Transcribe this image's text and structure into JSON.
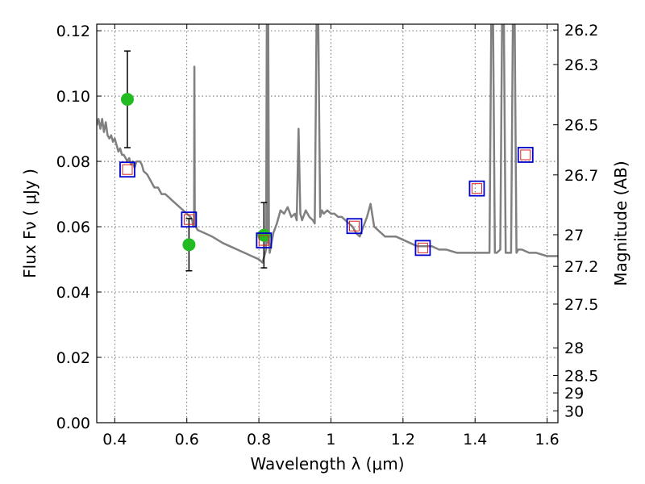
{
  "chart_data": {
    "type": "scatter",
    "title": "",
    "xlabel": "Wavelength  λ (μm)",
    "ylabel": "Flux  Fν  ( μJy )",
    "y2label": "Magnitude (AB)",
    "xlim": [
      0.35,
      1.63
    ],
    "ylim": [
      0.0,
      0.122
    ],
    "grid": true,
    "x_ticks": [
      {
        "value": 0.4,
        "label": "0.4"
      },
      {
        "value": 0.6,
        "label": "0.6"
      },
      {
        "value": 0.8,
        "label": "0.8"
      },
      {
        "value": 1.0,
        "label": "1"
      },
      {
        "value": 1.2,
        "label": "1.2"
      },
      {
        "value": 1.4,
        "label": "1.4"
      },
      {
        "value": 1.6,
        "label": "1.6"
      }
    ],
    "y_ticks": [
      {
        "value": 0.0,
        "label": "0.00"
      },
      {
        "value": 0.02,
        "label": "0.02"
      },
      {
        "value": 0.04,
        "label": "0.04"
      },
      {
        "value": 0.06,
        "label": "0.06"
      },
      {
        "value": 0.08,
        "label": "0.08"
      },
      {
        "value": 0.1,
        "label": "0.10"
      },
      {
        "value": 0.12,
        "label": "0.12"
      }
    ],
    "y2_ticks": [
      {
        "mag": 26.2,
        "label": "26.2"
      },
      {
        "mag": 26.3,
        "label": "26.3"
      },
      {
        "mag": 26.5,
        "label": "26.5"
      },
      {
        "mag": 26.7,
        "label": "26.7"
      },
      {
        "mag": 27.0,
        "label": "27"
      },
      {
        "mag": 27.2,
        "label": "27.2"
      },
      {
        "mag": 27.5,
        "label": "27.5"
      },
      {
        "mag": 28.0,
        "label": "28"
      },
      {
        "mag": 28.5,
        "label": "28.5"
      },
      {
        "mag": 29.0,
        "label": "29"
      },
      {
        "mag": 30.0,
        "label": "30"
      }
    ],
    "colors": {
      "model": "#808080",
      "observed": "#22bb22",
      "model_photometry": "#0000cc",
      "model_photometry_inner": "#dd2222",
      "errorbar": "#000000"
    },
    "series": [
      {
        "type": "line",
        "points": [
          [
            0.35,
            0.091
          ],
          [
            0.355,
            0.093
          ],
          [
            0.36,
            0.09
          ],
          [
            0.365,
            0.093
          ],
          [
            0.37,
            0.089
          ],
          [
            0.375,
            0.092
          ],
          [
            0.38,
            0.088
          ],
          [
            0.385,
            0.087
          ],
          [
            0.39,
            0.088
          ],
          [
            0.395,
            0.086
          ],
          [
            0.4,
            0.087
          ],
          [
            0.405,
            0.085
          ],
          [
            0.41,
            0.083
          ],
          [
            0.415,
            0.084
          ],
          [
            0.42,
            0.082
          ],
          [
            0.425,
            0.082
          ],
          [
            0.43,
            0.081
          ],
          [
            0.435,
            0.08
          ],
          [
            0.44,
            0.081
          ],
          [
            0.445,
            0.079
          ],
          [
            0.45,
            0.08
          ],
          [
            0.455,
            0.078
          ],
          [
            0.46,
            0.08
          ],
          [
            0.465,
            0.08
          ],
          [
            0.47,
            0.08
          ],
          [
            0.475,
            0.079
          ],
          [
            0.48,
            0.077
          ],
          [
            0.49,
            0.076
          ],
          [
            0.5,
            0.074
          ],
          [
            0.51,
            0.072
          ],
          [
            0.52,
            0.072
          ],
          [
            0.53,
            0.07
          ],
          [
            0.54,
            0.07
          ],
          [
            0.55,
            0.069
          ],
          [
            0.56,
            0.068
          ],
          [
            0.57,
            0.067
          ],
          [
            0.58,
            0.066
          ],
          [
            0.59,
            0.065
          ],
          [
            0.6,
            0.064
          ],
          [
            0.61,
            0.063
          ],
          [
            0.615,
            0.062
          ],
          [
            0.618,
            0.06
          ],
          [
            0.62,
            0.06
          ],
          [
            0.621,
            0.109
          ],
          [
            0.622,
            0.061
          ],
          [
            0.625,
            0.06
          ],
          [
            0.63,
            0.059
          ],
          [
            0.65,
            0.058
          ],
          [
            0.67,
            0.057
          ],
          [
            0.7,
            0.055
          ],
          [
            0.72,
            0.054
          ],
          [
            0.74,
            0.053
          ],
          [
            0.76,
            0.052
          ],
          [
            0.78,
            0.051
          ],
          [
            0.8,
            0.05
          ],
          [
            0.81,
            0.049
          ],
          [
            0.815,
            0.051
          ],
          [
            0.82,
            0.053
          ],
          [
            0.822,
            0.122
          ],
          [
            0.824,
            0.055
          ],
          [
            0.826,
            0.122
          ],
          [
            0.828,
            0.056
          ],
          [
            0.83,
            0.052
          ],
          [
            0.84,
            0.058
          ],
          [
            0.85,
            0.061
          ],
          [
            0.86,
            0.065
          ],
          [
            0.87,
            0.064
          ],
          [
            0.88,
            0.066
          ],
          [
            0.89,
            0.063
          ],
          [
            0.9,
            0.064
          ],
          [
            0.905,
            0.062
          ],
          [
            0.91,
            0.09
          ],
          [
            0.915,
            0.064
          ],
          [
            0.92,
            0.062
          ],
          [
            0.93,
            0.065
          ],
          [
            0.94,
            0.063
          ],
          [
            0.95,
            0.062
          ],
          [
            0.955,
            0.061
          ],
          [
            0.96,
            0.122
          ],
          [
            0.965,
            0.122
          ],
          [
            0.97,
            0.063
          ],
          [
            0.975,
            0.065
          ],
          [
            0.98,
            0.064
          ],
          [
            0.99,
            0.065
          ],
          [
            1.0,
            0.064
          ],
          [
            1.01,
            0.064
          ],
          [
            1.02,
            0.063
          ],
          [
            1.03,
            0.063
          ],
          [
            1.04,
            0.062
          ],
          [
            1.05,
            0.061
          ],
          [
            1.06,
            0.06
          ],
          [
            1.07,
            0.058
          ],
          [
            1.08,
            0.057
          ],
          [
            1.09,
            0.06
          ],
          [
            1.1,
            0.063
          ],
          [
            1.11,
            0.067
          ],
          [
            1.12,
            0.06
          ],
          [
            1.13,
            0.059
          ],
          [
            1.14,
            0.058
          ],
          [
            1.15,
            0.057
          ],
          [
            1.16,
            0.057
          ],
          [
            1.18,
            0.057
          ],
          [
            1.2,
            0.056
          ],
          [
            1.22,
            0.055
          ],
          [
            1.24,
            0.054
          ],
          [
            1.26,
            0.054
          ],
          [
            1.28,
            0.054
          ],
          [
            1.3,
            0.053
          ],
          [
            1.32,
            0.053
          ],
          [
            1.35,
            0.052
          ],
          [
            1.38,
            0.052
          ],
          [
            1.4,
            0.052
          ],
          [
            1.42,
            0.052
          ],
          [
            1.44,
            0.052
          ],
          [
            1.445,
            0.122
          ],
          [
            1.45,
            0.122
          ],
          [
            1.455,
            0.052
          ],
          [
            1.46,
            0.052
          ],
          [
            1.47,
            0.053
          ],
          [
            1.475,
            0.122
          ],
          [
            1.48,
            0.122
          ],
          [
            1.485,
            0.052
          ],
          [
            1.49,
            0.052
          ],
          [
            1.5,
            0.052
          ],
          [
            1.505,
            0.122
          ],
          [
            1.51,
            0.122
          ],
          [
            1.515,
            0.052
          ],
          [
            1.52,
            0.053
          ],
          [
            1.53,
            0.053
          ],
          [
            1.55,
            0.052
          ],
          [
            1.57,
            0.052
          ],
          [
            1.6,
            0.051
          ],
          [
            1.63,
            0.051
          ]
        ]
      },
      {
        "type": "errorbar",
        "points": [
          {
            "x": 0.435,
            "y": 0.099,
            "yerr": 0.0148
          },
          {
            "x": 0.606,
            "y": 0.0545,
            "yerr": 0.008
          },
          {
            "x": 0.814,
            "y": 0.0574,
            "yerr": 0.01
          }
        ]
      },
      {
        "type": "open-square",
        "points": [
          {
            "x": 0.435,
            "y": 0.0775
          },
          {
            "x": 0.606,
            "y": 0.0622
          },
          {
            "x": 0.814,
            "y": 0.0558
          },
          {
            "x": 1.065,
            "y": 0.0602
          },
          {
            "x": 1.255,
            "y": 0.0535
          },
          {
            "x": 1.405,
            "y": 0.0717
          },
          {
            "x": 1.54,
            "y": 0.082
          }
        ]
      }
    ]
  }
}
